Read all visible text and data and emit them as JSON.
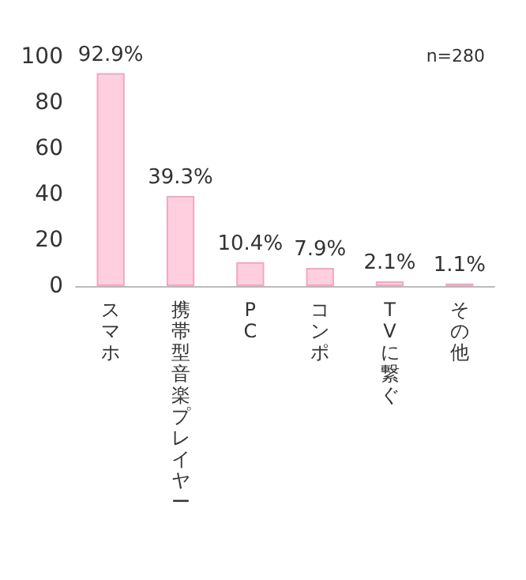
{
  "chart_data": {
    "type": "bar",
    "categories": [
      "スマホ",
      "携帯型音楽プレイヤー",
      "PC",
      "コンポ",
      "TVに繋ぐ",
      "その他"
    ],
    "values": [
      92.9,
      39.3,
      10.4,
      7.9,
      2.1,
      1.1
    ],
    "value_labels": [
      "92.9%",
      "39.3%",
      "10.4%",
      "7.9%",
      "2.1%",
      "1.1%"
    ],
    "color": "#ffcfe0",
    "ylim": [
      0,
      100
    ],
    "yticks": [
      0,
      20,
      40,
      60,
      80,
      100
    ],
    "annotations": [
      "n=280"
    ],
    "grid": false
  }
}
